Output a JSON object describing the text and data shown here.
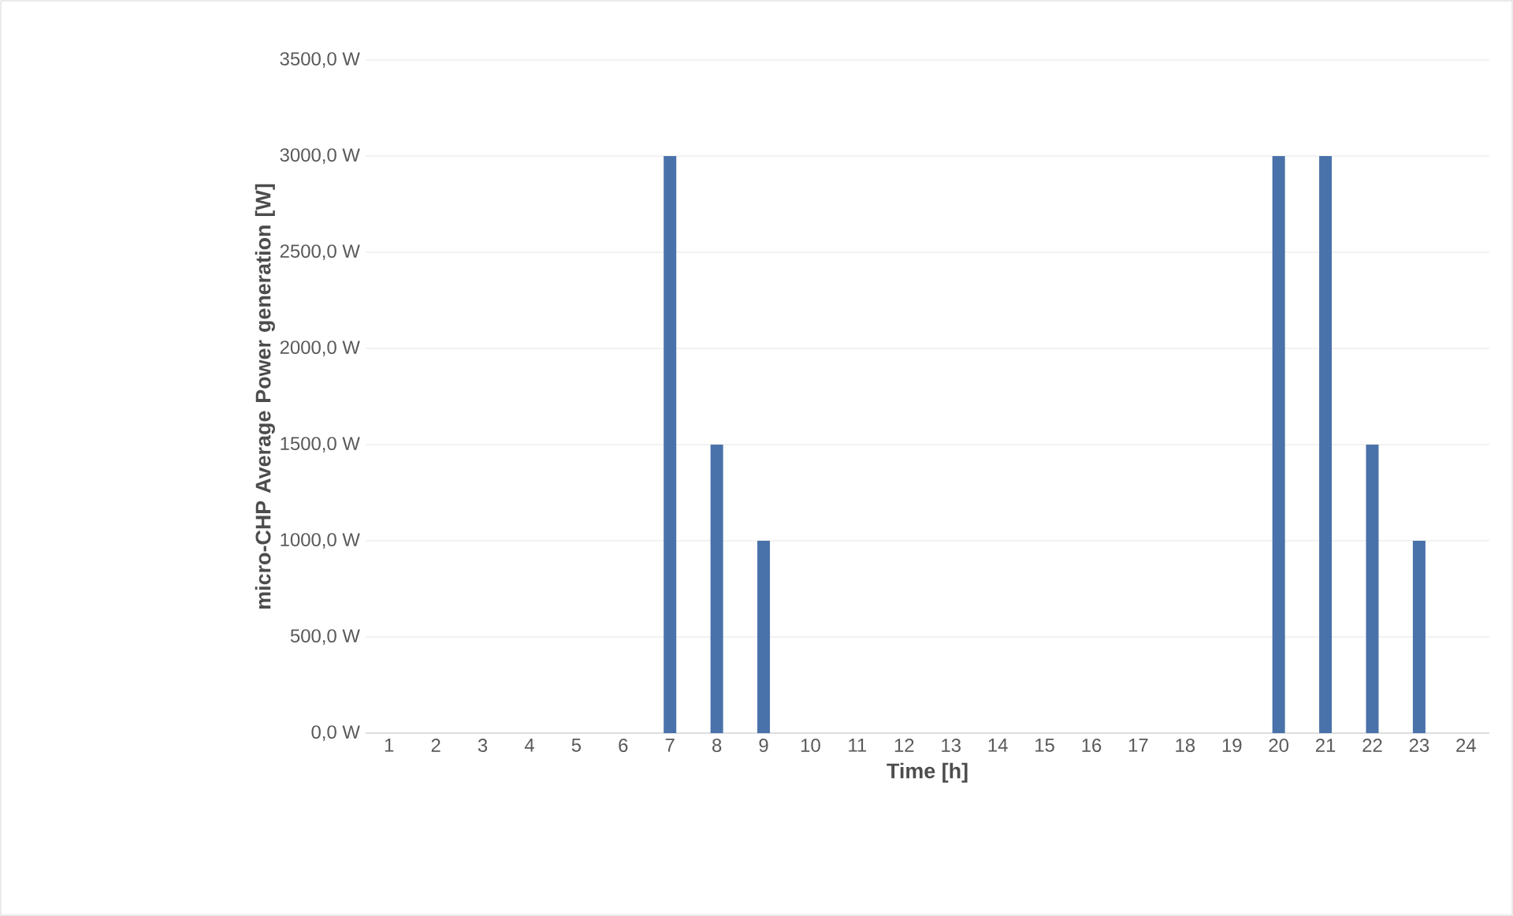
{
  "chart_data": {
    "type": "bar",
    "xlabel": "Time [h]",
    "ylabel": "micro-CHP Average Power generation [W]",
    "categories": [
      "1",
      "2",
      "3",
      "4",
      "5",
      "6",
      "7",
      "8",
      "9",
      "10",
      "11",
      "12",
      "13",
      "14",
      "15",
      "16",
      "17",
      "18",
      "19",
      "20",
      "21",
      "22",
      "23",
      "24"
    ],
    "values": [
      0,
      0,
      0,
      0,
      0,
      0,
      3000,
      1500,
      1000,
      0,
      0,
      0,
      0,
      0,
      0,
      0,
      0,
      0,
      0,
      3000,
      3000,
      1500,
      1000,
      0
    ],
    "color": "#4a72aa",
    "ylim": [
      0,
      3500
    ],
    "yticks": [
      {
        "value": 0,
        "label": "0,0 W"
      },
      {
        "value": 500,
        "label": "500,0 W"
      },
      {
        "value": 1000,
        "label": "1000,0 W"
      },
      {
        "value": 1500,
        "label": "1500,0 W"
      },
      {
        "value": 2000,
        "label": "2000,0 W"
      },
      {
        "value": 2500,
        "label": "2500,0 W"
      },
      {
        "value": 3000,
        "label": "3000,0 W"
      },
      {
        "value": 3500,
        "label": "3500,0 W"
      }
    ],
    "grid": "y"
  }
}
